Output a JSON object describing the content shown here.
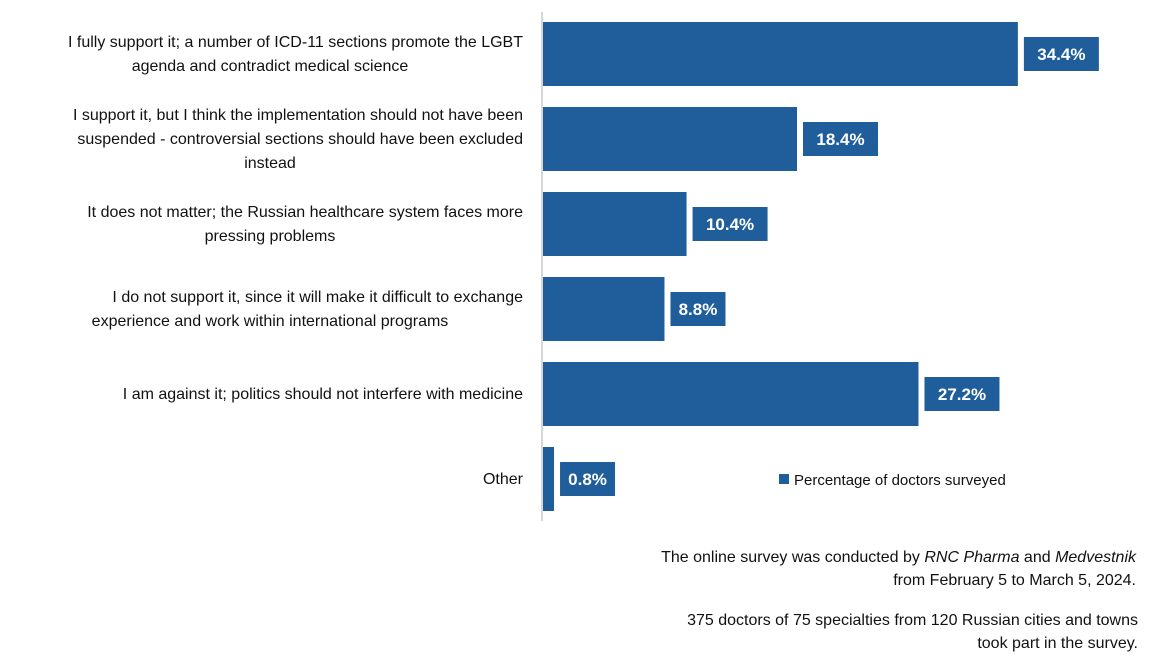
{
  "chart_data": {
    "type": "bar",
    "orientation": "horizontal",
    "categories": [
      [
        "I fully support it; a number of ICD-11 sections promote the LGBT",
        "agenda and contradict medical science"
      ],
      [
        "I support it, but I think the implementation should not have been",
        "suspended - controversial sections should have been excluded",
        "instead"
      ],
      [
        "It does not matter; the Russian healthcare system faces more",
        "pressing problems"
      ],
      [
        "I do not support it, since it will make it difficult to exchange",
        "experience and work within international programs"
      ],
      [
        "I am against it; politics should not interfere with medicine"
      ],
      [
        "Other"
      ]
    ],
    "series": [
      {
        "name": "Percentage of doctors surveyed",
        "values": [
          34.4,
          18.4,
          10.4,
          8.8,
          27.2,
          0.8
        ],
        "labels": [
          "34.4%",
          "18.4%",
          "10.4%",
          "8.8%",
          "27.2%",
          "0.8%"
        ]
      }
    ],
    "xlim": [
      0,
      46
    ],
    "grid": false,
    "legend_position": "bottom-right",
    "colors": {
      "bar": "#1f5e9a",
      "axis": "#c8c8c8"
    }
  },
  "footnote": {
    "line1_prefix": "The online survey was conducted by ",
    "line1_org1": "RNC Pharma",
    "line1_and": " and ",
    "line1_org2": "Medvestnik",
    "line2": "from February 5 to March 5, 2024.",
    "line3": "375 doctors of 75 specialties from 120 Russian cities and towns",
    "line4": "took part in the survey."
  }
}
